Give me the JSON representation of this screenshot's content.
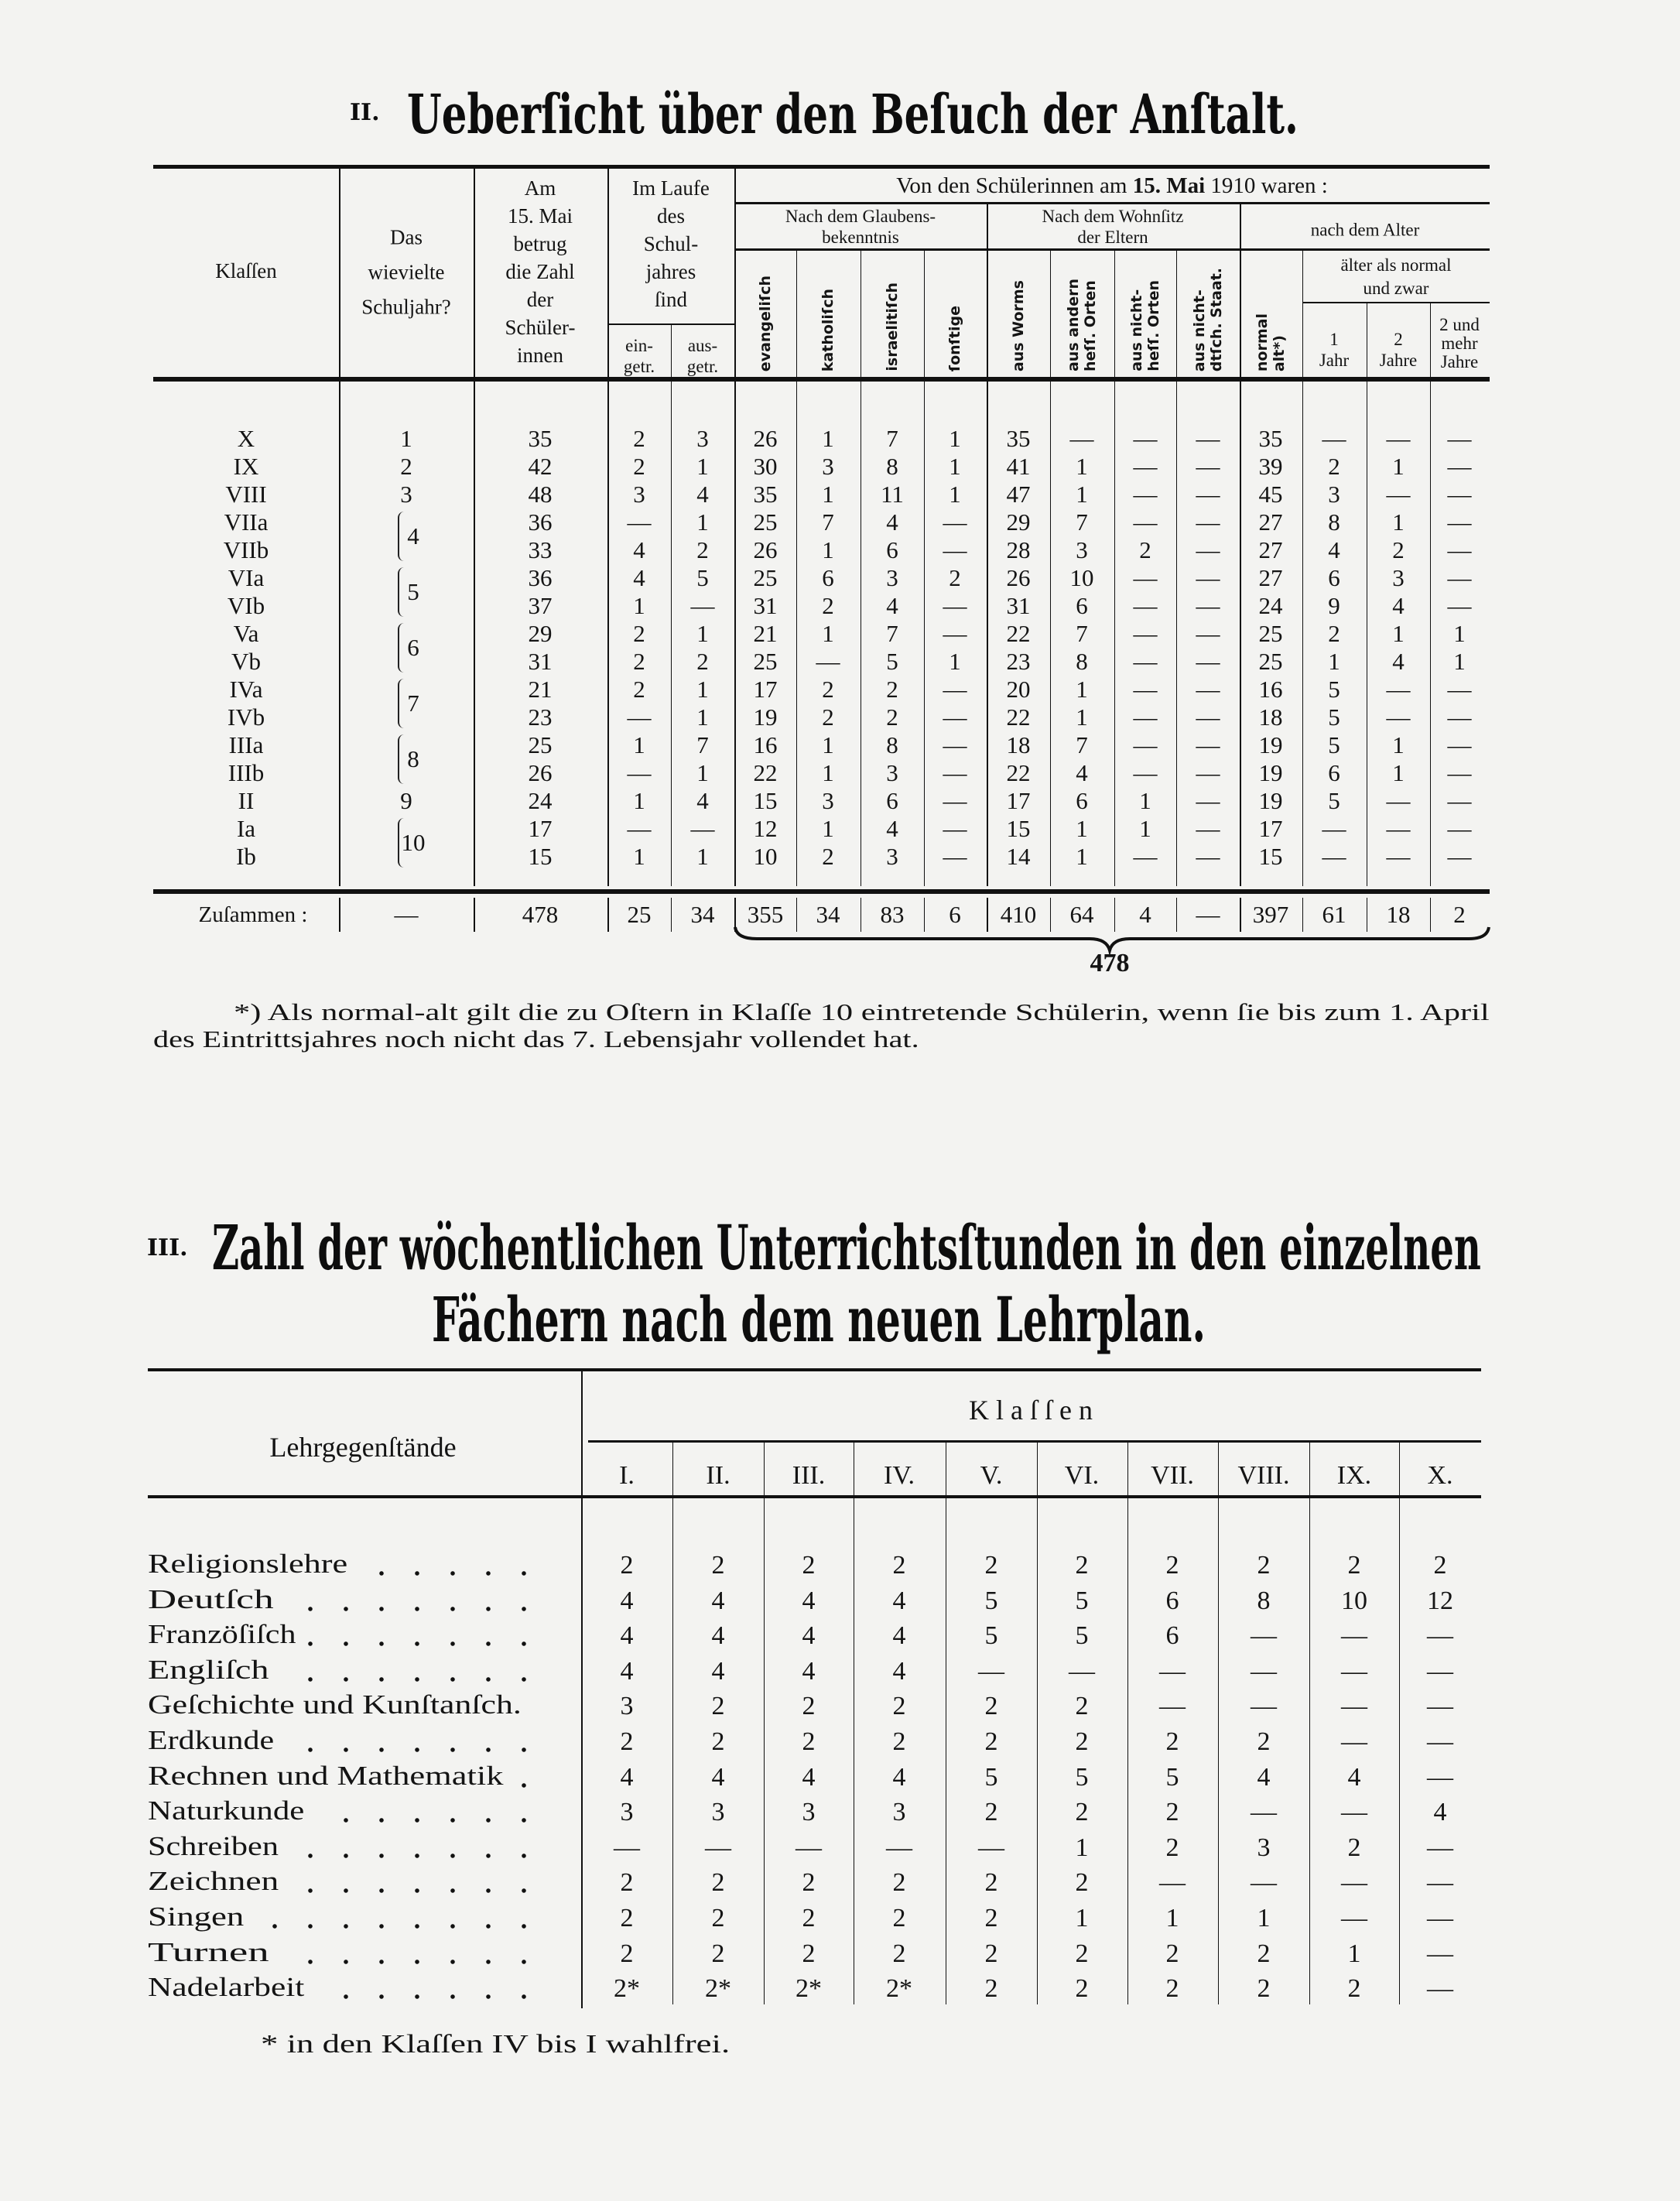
{
  "section2": {
    "number": "II.",
    "title": "Ueberſicht über den Beſuch der Anſtalt.",
    "header": {
      "klassen": "Klaſſen",
      "schuljahr": [
        "Das",
        "wievielte",
        "Schuljahr?"
      ],
      "zahl": [
        "Am",
        "15. Mai",
        "betrug",
        "die Zahl",
        "der",
        "Schüler-",
        "innen"
      ],
      "laufe": [
        "Im Laufe",
        "des",
        "Schul-",
        "jahres",
        "ſind"
      ],
      "eingetreten": [
        "ein-",
        "getr."
      ],
      "ausgetreten": [
        "aus-",
        "getr."
      ],
      "von_pre": "Von den Schülerinnen am",
      "von_bold": "15. Mai",
      "von_post": "1910 waren :",
      "glaubens": [
        "Nach dem Glaubens-",
        "bekenntnis"
      ],
      "wohnsitz": [
        "Nach dem Wohnſitz",
        "der Eltern"
      ],
      "alter": "nach dem Alter",
      "aelter": [
        "älter als normal",
        "und zwar"
      ],
      "rotated": [
        "evangeliſch",
        "katholiſch",
        "israelitiſch",
        "ſonſtige",
        "aus Worms",
        "aus andern\nheſſ. Orten",
        "aus nicht-\nheſſ. Orten",
        "aus nicht-\ndtſch. Staat.",
        "normal\nalt*)"
      ],
      "jahr1": [
        "1",
        "Jahr"
      ],
      "jahr2": [
        "2",
        "Jahre"
      ],
      "jahr3": [
        "2 und",
        "mehr",
        "Jahre"
      ]
    },
    "schuljahr_groups": [
      {
        "value": "1",
        "span": 1
      },
      {
        "value": "2",
        "span": 1
      },
      {
        "value": "3",
        "span": 1
      },
      {
        "value": "4",
        "span": 2
      },
      {
        "value": "5",
        "span": 2
      },
      {
        "value": "6",
        "span": 2
      },
      {
        "value": "7",
        "span": 2
      },
      {
        "value": "8",
        "span": 2
      },
      {
        "value": "9",
        "span": 1
      },
      {
        "value": "10",
        "span": 2
      }
    ],
    "rows": [
      {
        "klasse": "X",
        "values": [
          "35",
          "2",
          "3",
          "26",
          "1",
          "7",
          "1",
          "35",
          "—",
          "—",
          "—",
          "35",
          "—",
          "—",
          "—"
        ]
      },
      {
        "klasse": "IX",
        "values": [
          "42",
          "2",
          "1",
          "30",
          "3",
          "8",
          "1",
          "41",
          "1",
          "—",
          "—",
          "39",
          "2",
          "1",
          "—"
        ]
      },
      {
        "klasse": "VIII",
        "values": [
          "48",
          "3",
          "4",
          "35",
          "1",
          "11",
          "1",
          "47",
          "1",
          "—",
          "—",
          "45",
          "3",
          "—",
          "—"
        ]
      },
      {
        "klasse": "VIIa",
        "values": [
          "36",
          "—",
          "1",
          "25",
          "7",
          "4",
          "—",
          "29",
          "7",
          "—",
          "—",
          "27",
          "8",
          "1",
          "—"
        ]
      },
      {
        "klasse": "VIIb",
        "values": [
          "33",
          "4",
          "2",
          "26",
          "1",
          "6",
          "—",
          "28",
          "3",
          "2",
          "—",
          "27",
          "4",
          "2",
          "—"
        ]
      },
      {
        "klasse": "VIa",
        "values": [
          "36",
          "4",
          "5",
          "25",
          "6",
          "3",
          "2",
          "26",
          "10",
          "—",
          "—",
          "27",
          "6",
          "3",
          "—"
        ]
      },
      {
        "klasse": "VIb",
        "values": [
          "37",
          "1",
          "—",
          "31",
          "2",
          "4",
          "—",
          "31",
          "6",
          "—",
          "—",
          "24",
          "9",
          "4",
          "—"
        ]
      },
      {
        "klasse": "Va",
        "values": [
          "29",
          "2",
          "1",
          "21",
          "1",
          "7",
          "—",
          "22",
          "7",
          "—",
          "—",
          "25",
          "2",
          "1",
          "1"
        ]
      },
      {
        "klasse": "Vb",
        "values": [
          "31",
          "2",
          "2",
          "25",
          "—",
          "5",
          "1",
          "23",
          "8",
          "—",
          "—",
          "25",
          "1",
          "4",
          "1"
        ]
      },
      {
        "klasse": "IVa",
        "values": [
          "21",
          "2",
          "1",
          "17",
          "2",
          "2",
          "—",
          "20",
          "1",
          "—",
          "—",
          "16",
          "5",
          "—",
          "—"
        ]
      },
      {
        "klasse": "IVb",
        "values": [
          "23",
          "—",
          "1",
          "19",
          "2",
          "2",
          "—",
          "22",
          "1",
          "—",
          "—",
          "18",
          "5",
          "—",
          "—"
        ]
      },
      {
        "klasse": "IIIa",
        "values": [
          "25",
          "1",
          "7",
          "16",
          "1",
          "8",
          "—",
          "18",
          "7",
          "—",
          "—",
          "19",
          "5",
          "1",
          "—"
        ]
      },
      {
        "klasse": "IIIb",
        "values": [
          "26",
          "—",
          "1",
          "22",
          "1",
          "3",
          "—",
          "22",
          "4",
          "—",
          "—",
          "19",
          "6",
          "1",
          "—"
        ]
      },
      {
        "klasse": "II",
        "values": [
          "24",
          "1",
          "4",
          "15",
          "3",
          "6",
          "—",
          "17",
          "6",
          "1",
          "—",
          "19",
          "5",
          "—",
          "—"
        ]
      },
      {
        "klasse": "Ia",
        "values": [
          "17",
          "—",
          "—",
          "12",
          "1",
          "4",
          "—",
          "15",
          "1",
          "1",
          "—",
          "17",
          "—",
          "—",
          "—"
        ]
      },
      {
        "klasse": "Ib",
        "values": [
          "15",
          "1",
          "1",
          "10",
          "2",
          "3",
          "—",
          "14",
          "1",
          "—",
          "—",
          "15",
          "—",
          "—",
          "—"
        ]
      }
    ],
    "total": {
      "label": "Zuſammen :",
      "schuljahr": "—",
      "values": [
        "478",
        "25",
        "34",
        "355",
        "34",
        "83",
        "6",
        "410",
        "64",
        "4",
        "—",
        "397",
        "61",
        "18",
        "2"
      ],
      "grand_total": "478"
    },
    "footnote": [
      "*) Als normal-alt gilt die zu Oſtern in Klaſſe 10 eintretende Schülerin, wenn ſie bis zum 1. April",
      "des Eintrittsjahres noch nicht das 7. Lebensjahr vollendet hat."
    ]
  },
  "section3": {
    "number": "III.",
    "title_line1": "Zahl der wöchentlichen Unterrichtsſtunden in den einzelnen",
    "title_line2": "Fächern nach dem neuen Lehrplan.",
    "header": {
      "subjects": "Lehrgegenſtände",
      "classes": "K l a ſ ſ e n",
      "columns": [
        "I.",
        "II.",
        "III.",
        "IV.",
        "V.",
        "VI.",
        "VII.",
        "VIII.",
        "IX.",
        "X."
      ]
    },
    "rows": [
      {
        "subject": "Religionslehre",
        "hours": [
          "2",
          "2",
          "2",
          "2",
          "2",
          "2",
          "2",
          "2",
          "2",
          "2"
        ]
      },
      {
        "subject": "Deutſch",
        "hours": [
          "4",
          "4",
          "4",
          "4",
          "5",
          "5",
          "6",
          "8",
          "10",
          "12"
        ]
      },
      {
        "subject": "Franzöſiſch",
        "hours": [
          "4",
          "4",
          "4",
          "4",
          "5",
          "5",
          "6",
          "—",
          "—",
          "—"
        ]
      },
      {
        "subject": "Engliſch",
        "hours": [
          "4",
          "4",
          "4",
          "4",
          "—",
          "—",
          "—",
          "—",
          "—",
          "—"
        ]
      },
      {
        "subject": "Geſchichte und Kunſtanſch.",
        "hours": [
          "3",
          "2",
          "2",
          "2",
          "2",
          "2",
          "—",
          "—",
          "—",
          "—"
        ]
      },
      {
        "subject": "Erdkunde",
        "hours": [
          "2",
          "2",
          "2",
          "2",
          "2",
          "2",
          "2",
          "2",
          "—",
          "—"
        ]
      },
      {
        "subject": "Rechnen und Mathematik",
        "hours": [
          "4",
          "4",
          "4",
          "4",
          "5",
          "5",
          "5",
          "4",
          "4",
          "—"
        ]
      },
      {
        "subject": "Naturkunde",
        "hours": [
          "3",
          "3",
          "3",
          "3",
          "2",
          "2",
          "2",
          "—",
          "—",
          "4"
        ]
      },
      {
        "subject": "Schreiben",
        "hours": [
          "—",
          "—",
          "—",
          "—",
          "—",
          "1",
          "2",
          "3",
          "2",
          "—"
        ]
      },
      {
        "subject": "Zeichnen",
        "hours": [
          "2",
          "2",
          "2",
          "2",
          "2",
          "2",
          "—",
          "—",
          "—",
          "—"
        ]
      },
      {
        "subject": "Singen",
        "hours": [
          "2",
          "2",
          "2",
          "2",
          "2",
          "1",
          "1",
          "1",
          "—",
          "—"
        ]
      },
      {
        "subject": "Turnen",
        "hours": [
          "2",
          "2",
          "2",
          "2",
          "2",
          "2",
          "2",
          "2",
          "1",
          "—"
        ]
      },
      {
        "subject": "Nadelarbeit",
        "hours": [
          "2*",
          "2*",
          "2*",
          "2*",
          "2",
          "2",
          "2",
          "2",
          "2",
          "—"
        ]
      }
    ],
    "footnote": "* in den Klaſſen IV bis I wahlfrei."
  }
}
